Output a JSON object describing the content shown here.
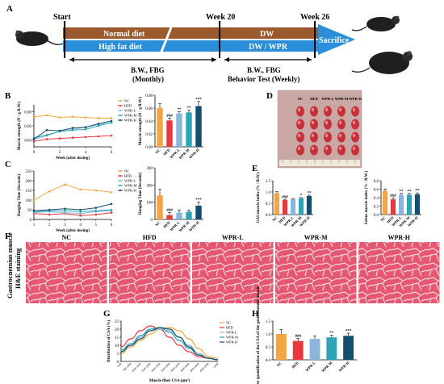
{
  "panel_letters": {
    "A": "A",
    "B": "B",
    "C": "C",
    "D": "D",
    "E": "E",
    "F": "F",
    "G": "G",
    "H": "H"
  },
  "colors": {
    "NC": "#f4a442",
    "HFD": "#e8383d",
    "WPR-L": "#8ab6dc",
    "WPR-M": "#2fa4b8",
    "WPR-H": "#12506e",
    "brown": "#9a5a2e",
    "blue": "#2a8fd8",
    "tissue": "#e8506e"
  },
  "groups": [
    "NC",
    "HFD",
    "WPR-L",
    "WPR-M",
    "WPR-H"
  ],
  "timeline": {
    "start": "Start",
    "week20": "Week 20",
    "week26": "Week 26",
    "normal_diet": "Normal diet",
    "high_fat_diet": "High fat diet",
    "dw": "DW",
    "dw_wpr": "DW / WPR",
    "sacrifice": "Sacrifice",
    "bw_monthly_1": "B.W., FBG",
    "bw_monthly_2": "(Monthly)",
    "bw_weekly_1": "B.W., FBG",
    "bw_weekly_2": "Behavior Test (Weekly)"
  },
  "panelB": {
    "line": {
      "ylabel": "Muscle strength (N / g B.W.)",
      "xlabel": "Week (after dosing)",
      "x": [
        0,
        1,
        2,
        3,
        4,
        5,
        6
      ],
      "yticks": [
        "0.04",
        "0.06",
        "0.08"
      ],
      "ylim": [
        0.03,
        0.09
      ],
      "xticks": [
        "0",
        "2",
        "4",
        "6"
      ],
      "series": [
        {
          "name": "NC",
          "values": [
            0.073,
            0.075,
            0.072,
            0.073,
            0.072,
            0.071,
            0.071
          ]
        },
        {
          "name": "HFD",
          "values": [
            0.038,
            0.041,
            0.042,
            0.043,
            0.044,
            0.045,
            0.046
          ]
        },
        {
          "name": "WPR-L",
          "values": [
            0.041,
            0.046,
            0.052,
            0.055,
            0.058,
            0.062,
            0.064
          ]
        },
        {
          "name": "WPR-M",
          "values": [
            0.043,
            0.047,
            0.052,
            0.054,
            0.055,
            0.06,
            0.065
          ]
        },
        {
          "name": "WPR-H",
          "values": [
            0.041,
            0.054,
            0.053,
            0.057,
            0.058,
            0.063,
            0.067
          ]
        }
      ]
    },
    "bar": {
      "ylabel": "Muscle strength (N / g B.W.)",
      "yticks": [
        "0.00",
        "0.02",
        "0.04",
        "0.06",
        "0.08"
      ],
      "ylim": [
        0,
        0.09
      ],
      "values": [
        0.068,
        0.046,
        0.058,
        0.06,
        0.071
      ],
      "errors": [
        0.007,
        0.004,
        0.003,
        0.004,
        0.008
      ],
      "sig": [
        "",
        "###",
        "**",
        "**",
        "***"
      ]
    }
  },
  "panelC": {
    "line": {
      "ylabel": "Hanging Time (Seconds)",
      "xlabel": "Week (after dosing)",
      "x": [
        1,
        2,
        3,
        4,
        5,
        6
      ],
      "yticks": [
        "0",
        "50",
        "100",
        "150",
        "200",
        "250"
      ],
      "ylim": [
        0,
        250
      ],
      "xticks": [
        "1",
        "2",
        "3",
        "4",
        "5",
        "6"
      ],
      "series": [
        {
          "name": "NC",
          "values": [
            100,
            145,
            180,
            155,
            150,
            140
          ]
        },
        {
          "name": "HFD",
          "values": [
            30,
            25,
            30,
            20,
            25,
            35
          ]
        },
        {
          "name": "WPR-L",
          "values": [
            35,
            40,
            35,
            30,
            40,
            45
          ]
        },
        {
          "name": "WPR-M",
          "values": [
            40,
            45,
            45,
            40,
            45,
            50
          ]
        },
        {
          "name": "WPR-H",
          "values": [
            45,
            50,
            55,
            50,
            60,
            80
          ]
        }
      ]
    },
    "bar": {
      "ylabel": "Hanging Time (Seconds)",
      "yticks": [
        "0",
        "100",
        "200",
        "300"
      ],
      "ylim": [
        0,
        300
      ],
      "values": [
        140,
        25,
        40,
        45,
        80
      ],
      "errors": [
        35,
        15,
        15,
        10,
        20
      ],
      "sig": [
        "",
        "###",
        "",
        "",
        "***"
      ]
    }
  },
  "panelE": {
    "gas": {
      "ylabel": "GAS muscle index (% / B.W.)",
      "yticks": [
        "0.0",
        "0.5",
        "1.0",
        "1.5"
      ],
      "ylim": [
        0,
        1.5
      ],
      "values": [
        0.95,
        0.65,
        0.68,
        0.72,
        0.82
      ],
      "errors": [
        0.06,
        0.03,
        0.03,
        0.03,
        0.04
      ],
      "sig": [
        "",
        "###",
        "",
        "*",
        "**"
      ]
    },
    "sol": {
      "ylabel": "Soleus muscle index (% / B.W.)",
      "yticks": [
        "0.0",
        "0.2",
        "0.4",
        "0.6",
        "0.8"
      ],
      "ylim": [
        0,
        0.8
      ],
      "values": [
        0.56,
        0.36,
        0.47,
        0.47,
        0.48
      ],
      "errors": [
        0.04,
        0.03,
        0.03,
        0.03,
        0.03
      ],
      "sig": [
        "",
        "###",
        "**",
        "**",
        "**"
      ]
    }
  },
  "panelD": {
    "header": [
      "NC",
      "HFD",
      "WPR-L",
      "WPR-M",
      "WPR-H"
    ]
  },
  "panelF": {
    "side_label_1": "Gastrocnemius muscle",
    "side_label_2": "H&E staining",
    "labels": [
      "NC",
      "HFD",
      "WPR-L",
      "WPR-M",
      "WPR-H"
    ]
  },
  "panelG": {
    "ylabel": "Distribution of CSA (%)",
    "xlabel": "Muscle fiber CSA (μm²)",
    "yticks": [
      "0",
      "5",
      "10",
      "15",
      "20",
      "25"
    ],
    "ylim": [
      0,
      25
    ],
    "categories": [
      "<500",
      "500-1000",
      "1000-1500",
      "1500-2000",
      "2000-2500",
      "2500-3000",
      "3000-3500",
      "3500-4000",
      "4000-4500",
      "4500-5000",
      ">5000"
    ],
    "series": [
      {
        "name": "NC",
        "values": [
          5,
          9,
          13,
          17,
          20,
          21,
          19,
          14,
          8,
          3,
          2
        ]
      },
      {
        "name": "HFD",
        "values": [
          9,
          14,
          19,
          22,
          20,
          15,
          10,
          6,
          3,
          2,
          1
        ]
      },
      {
        "name": "WPR-L",
        "values": [
          6,
          10,
          15,
          19,
          20,
          19,
          15,
          10,
          5,
          2,
          1
        ]
      },
      {
        "name": "WPR-M",
        "values": [
          7,
          11,
          16,
          20,
          21,
          18,
          13,
          8,
          4,
          2,
          1
        ]
      },
      {
        "name": "WPR-H",
        "values": [
          6,
          10,
          14,
          19,
          21,
          20,
          15,
          9,
          4,
          2,
          1
        ]
      }
    ]
  },
  "panelH": {
    "ylabel": "Relative quantification of the CSA of the gastrocnemius muscle",
    "yticks": [
      "0.0",
      "0.5",
      "1.0",
      "1.5"
    ],
    "ylim": [
      0,
      1.5
    ],
    "values": [
      1.0,
      0.73,
      0.81,
      0.87,
      0.93
    ],
    "errors": [
      0.18,
      0.1,
      0.12,
      0.08,
      0.1
    ],
    "sig": [
      "",
      "###",
      "",
      "**",
      "***"
    ]
  }
}
